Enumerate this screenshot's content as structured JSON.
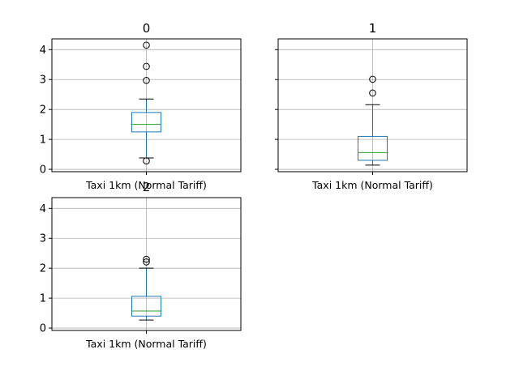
{
  "chart_data": {
    "type": "box",
    "ylim": [
      -0.08,
      4.36
    ],
    "yticks": [
      0,
      1,
      2,
      3,
      4
    ],
    "grid": true,
    "colors": {
      "box": "#1f77b4",
      "median": "#2ca02c",
      "whisker": "#1f77b4",
      "cap": "#000000",
      "grid": "#b0b0b0",
      "flier": "#000000"
    },
    "panels": [
      {
        "title": "0",
        "category": "Taxi 1km (Normal Tariff)",
        "whisker_low": 0.38,
        "q1": 1.25,
        "median": 1.5,
        "q3": 1.9,
        "whisker_high": 2.35,
        "fliers": [
          0.28,
          2.97,
          3.44,
          4.15
        ]
      },
      {
        "title": "1",
        "category": "Taxi 1km (Normal Tariff)",
        "whisker_low": 0.14,
        "q1": 0.3,
        "median": 0.56,
        "q3": 1.1,
        "whisker_high": 2.16,
        "fliers": [
          2.55,
          3.01
        ]
      },
      {
        "title": "2",
        "category": "Taxi 1km (Normal Tariff)",
        "whisker_low": 0.27,
        "q1": 0.4,
        "median": 0.57,
        "q3": 1.06,
        "whisker_high": 2.0,
        "fliers": [
          2.21,
          2.3
        ]
      }
    ]
  }
}
